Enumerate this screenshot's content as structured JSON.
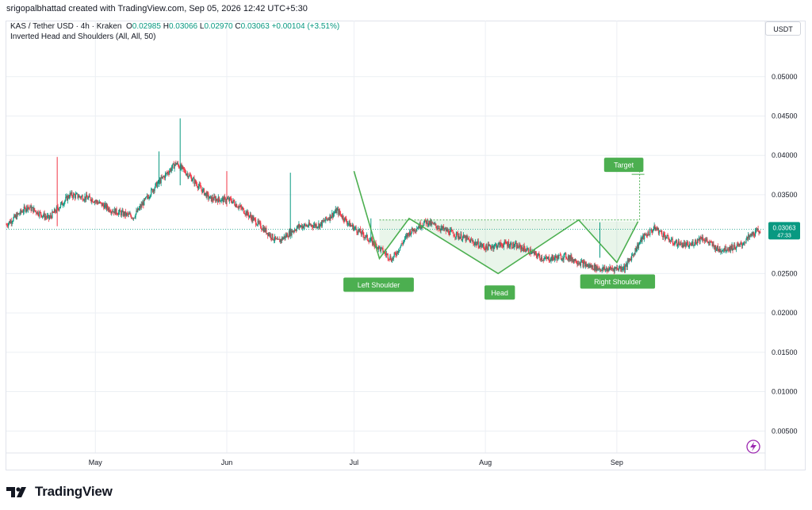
{
  "header": {
    "credit": "srigopalbhattad created with TradingView.com, Sep 05, 2026 12:42 UTC+5:30",
    "symbol": "KAS / Tether USD · 4h · Kraken",
    "o_label": "O",
    "o_value": "0.02985",
    "h_label": "H",
    "h_value": "0.03066",
    "l_label": "L",
    "l_value": "0.02970",
    "c_label": "C",
    "c_value": "0.03063",
    "change": "+0.00104 (+3.51%)",
    "indicator": "Inverted Head and Shoulders (All, All, 50)",
    "currency_button": "USDT"
  },
  "footer": {
    "brand": "TradingView"
  },
  "colors": {
    "up": "#089981",
    "down": "#f23645",
    "pattern": "#4caf50",
    "grid": "#eceff4"
  },
  "chart_data": {
    "type": "candlestick",
    "title": "KAS / Tether USD · 4h · Kraken",
    "xlabel": "",
    "ylabel": "",
    "ylim": [
      0,
      0.0545
    ],
    "grid": true,
    "x_ticks": [
      "May",
      "Jun",
      "Jul",
      "Aug",
      "Sep"
    ],
    "y_ticks": [
      "0.05000",
      "0.04500",
      "0.04000",
      "0.03500",
      "0.02500",
      "0.02000",
      "0.01500",
      "0.01000",
      "0.00500"
    ],
    "last_price": {
      "value": "0.03063",
      "countdown": "47:33"
    },
    "price_path": [
      [
        "Apr 10",
        0.0312
      ],
      [
        "Apr 15",
        0.0335
      ],
      [
        "Apr 20",
        0.032
      ],
      [
        "Apr 25",
        0.035
      ],
      [
        "Apr 30",
        0.0345
      ],
      [
        "May 05",
        0.033
      ],
      [
        "May 10",
        0.0322
      ],
      [
        "May 15",
        0.036
      ],
      [
        "May 20",
        0.039
      ],
      [
        "May 23",
        0.0375
      ],
      [
        "May 28",
        0.0345
      ],
      [
        "Jun 02",
        0.0343
      ],
      [
        "Jun 05",
        0.033
      ],
      [
        "Jun 10",
        0.0305
      ],
      [
        "Jun 13",
        0.029
      ],
      [
        "Jun 18",
        0.031
      ],
      [
        "Jun 23",
        0.0312
      ],
      [
        "Jun 27",
        0.033
      ],
      [
        "Jun 30",
        0.0312
      ],
      [
        "Jul 03",
        0.03
      ],
      [
        "Jul 07",
        0.0282
      ],
      [
        "Jul 10",
        0.0268
      ],
      [
        "Jul 14",
        0.0302
      ],
      [
        "Jul 18",
        0.0316
      ],
      [
        "Jul 22",
        0.0306
      ],
      [
        "Jul 27",
        0.0295
      ],
      [
        "Aug 01",
        0.0283
      ],
      [
        "Aug 06",
        0.0288
      ],
      [
        "Aug 10",
        0.0282
      ],
      [
        "Aug 15",
        0.0268
      ],
      [
        "Aug 20",
        0.0272
      ],
      [
        "Aug 25",
        0.026
      ],
      [
        "Aug 29",
        0.0255
      ],
      [
        "Sep 03",
        0.0258
      ],
      [
        "Sep 07",
        0.0295
      ],
      [
        "Sep 10",
        0.0308
      ],
      [
        "Sep 14",
        0.029
      ],
      [
        "Sep 18",
        0.0285
      ],
      [
        "Sep 21",
        0.0296
      ],
      [
        "Sep 25",
        0.028
      ],
      [
        "Sep 30",
        0.0285
      ],
      [
        "Oct 03",
        0.03
      ],
      [
        "Oct 05",
        0.0306
      ]
    ],
    "spikes": [
      {
        "date": "Apr 22",
        "high": 0.0398,
        "low": 0.031,
        "up": false
      },
      {
        "date": "May 21",
        "high": 0.0447,
        "low": 0.0362,
        "up": true
      },
      {
        "date": "May 16",
        "high": 0.0405,
        "low": 0.036,
        "up": true
      },
      {
        "date": "Jun 01",
        "high": 0.038,
        "low": 0.0335,
        "up": false
      },
      {
        "date": "Jun 16",
        "high": 0.0378,
        "low": 0.03,
        "up": true
      },
      {
        "date": "Jul 05",
        "high": 0.032,
        "low": 0.029,
        "up": true
      },
      {
        "date": "Aug 28",
        "high": 0.0315,
        "low": 0.027,
        "up": true
      }
    ],
    "pattern": {
      "name": "Inverted Head and Shoulders",
      "points": [
        {
          "label": "",
          "date": "Jul 01",
          "price": 0.038
        },
        {
          "label": "Left Shoulder",
          "date": "Jul 07",
          "price": 0.0269
        },
        {
          "label": "",
          "date": "Jul 14",
          "price": 0.032
        },
        {
          "label": "Head",
          "date": "Aug 04",
          "price": 0.025
        },
        {
          "label": "",
          "date": "Aug 23",
          "price": 0.0318
        },
        {
          "label": "Right Shoulder",
          "date": "Sep 01",
          "price": 0.0264
        },
        {
          "label": "",
          "date": "Sep 06",
          "price": 0.0316
        }
      ],
      "neckline": 0.0318,
      "target": {
        "label": "Target",
        "price": 0.0388
      }
    }
  }
}
